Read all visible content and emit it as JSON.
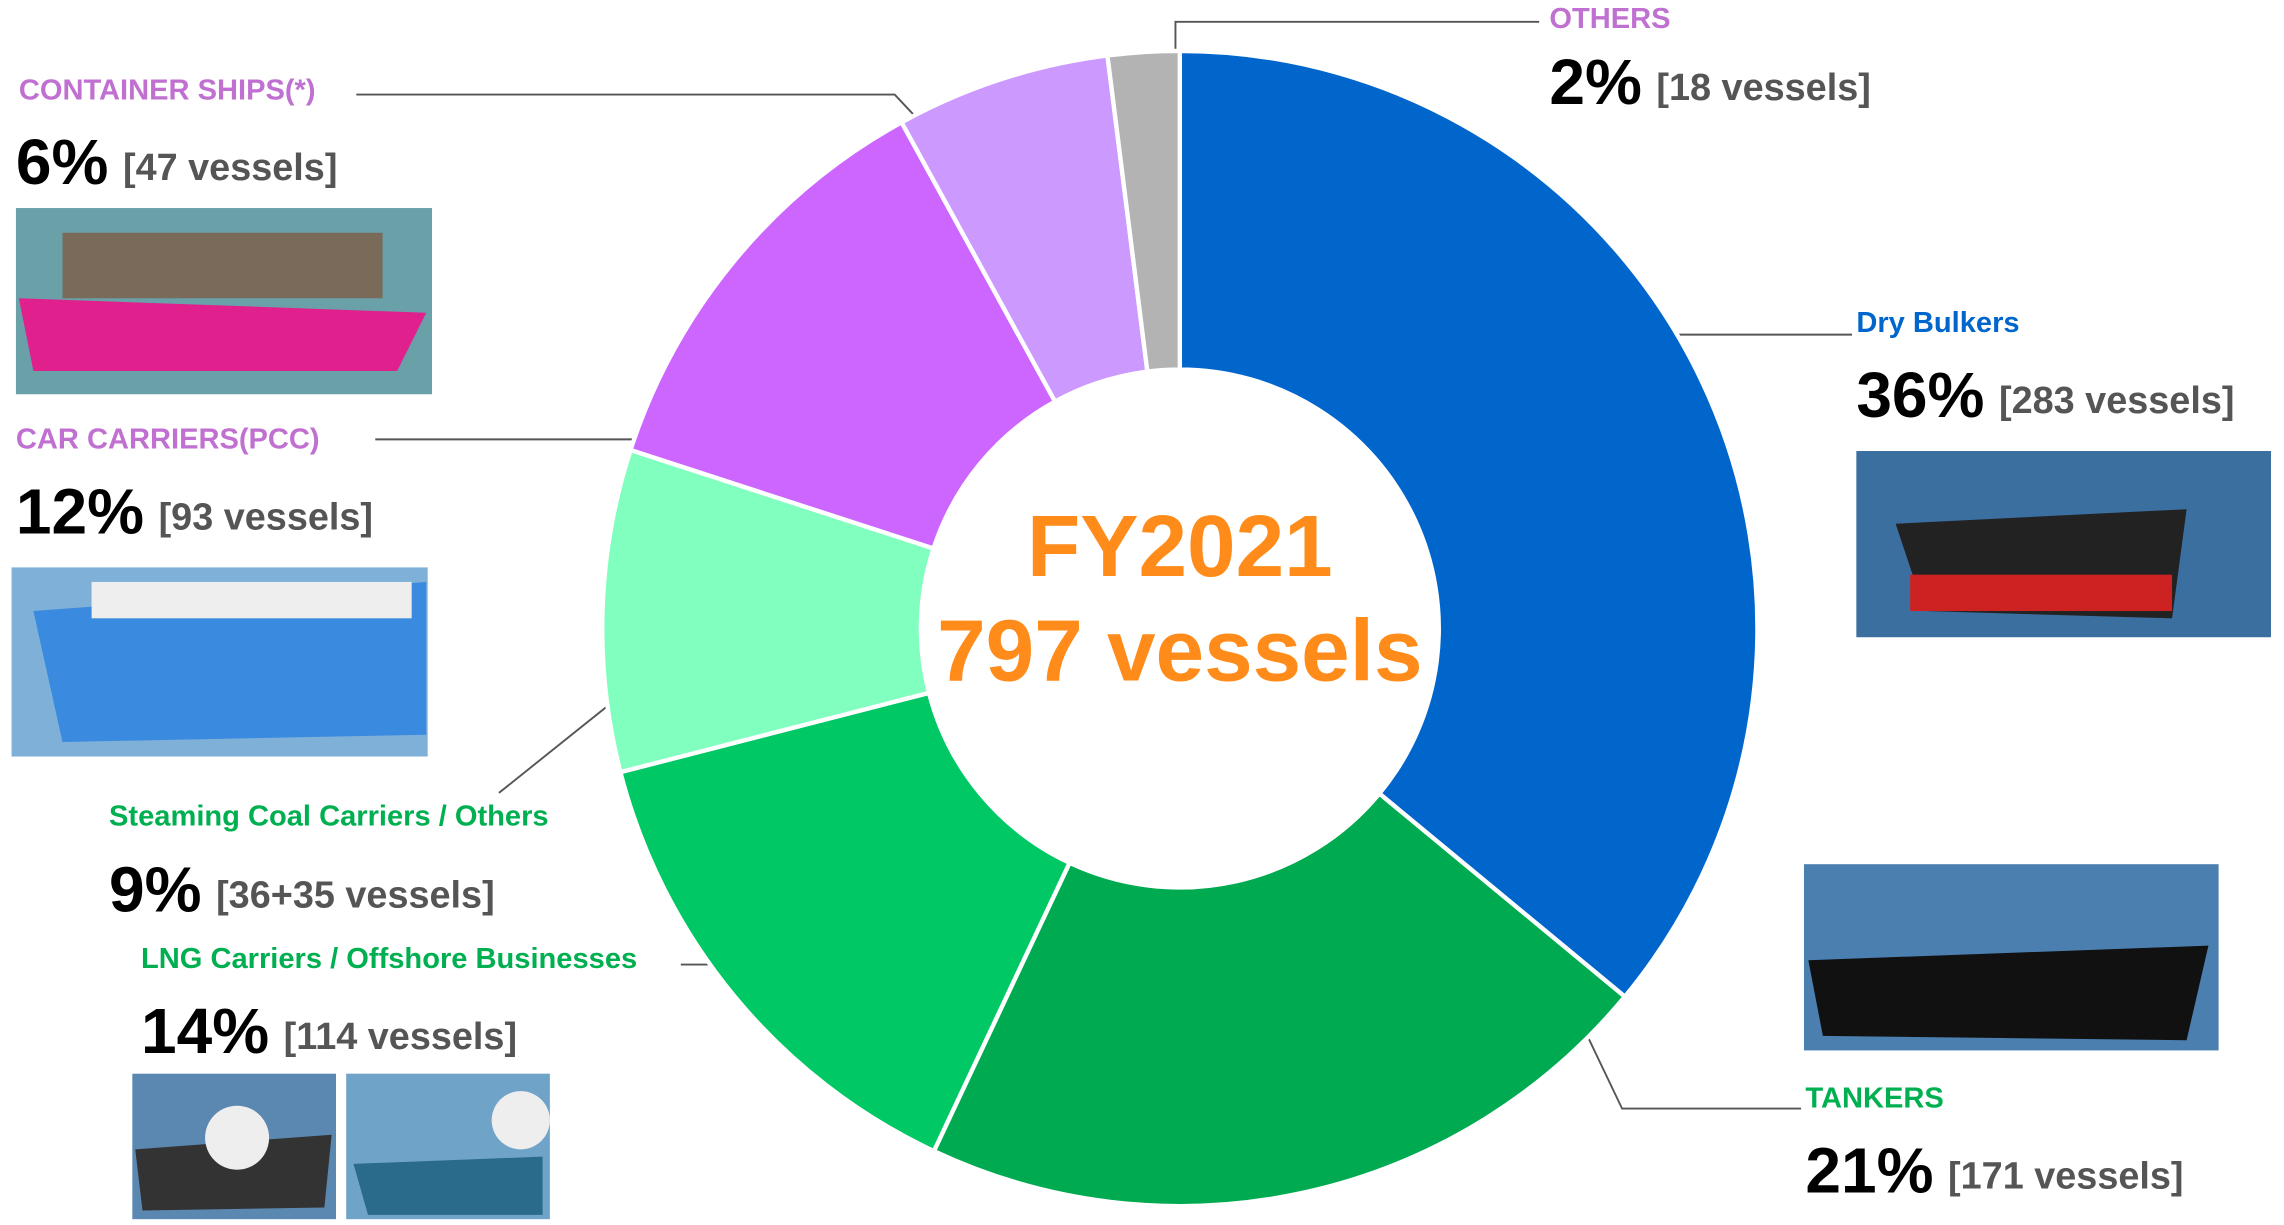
{
  "chart_data": {
    "type": "donut",
    "categories": [
      "Dry Bulkers",
      "TANKERS",
      "LNG Carriers / Offshore Businesses",
      "Steaming Coal Carriers / Others",
      "CAR CARRIERS(PCC)",
      "CONTAINER SHIPS(*)",
      "OTHERS"
    ],
    "values": [
      36,
      21,
      14,
      9,
      12,
      6,
      2
    ],
    "value_labels": [
      "36%",
      "21%",
      "14%",
      "9%",
      "12%",
      "6%",
      "2%"
    ],
    "details": [
      "[283 vessels]",
      "[171 vessels]",
      "[114 vessels]",
      "[36+35 vessels]",
      "[93 vessels]",
      "[47 vessels]",
      "[18 vessels]"
    ],
    "colors": [
      "#0066cc",
      "#00aa50",
      "#00c864",
      "#80ffbf",
      "#cc66ff",
      "#cc99ff",
      "#b3b3b3"
    ],
    "label_colors": [
      "#0066cc",
      "#00b050",
      "#00b050",
      "#00b050",
      "#c070d0",
      "#c070d0",
      "#c070d0"
    ],
    "center_label": [
      "FY2021",
      "797 vessels"
    ]
  }
}
